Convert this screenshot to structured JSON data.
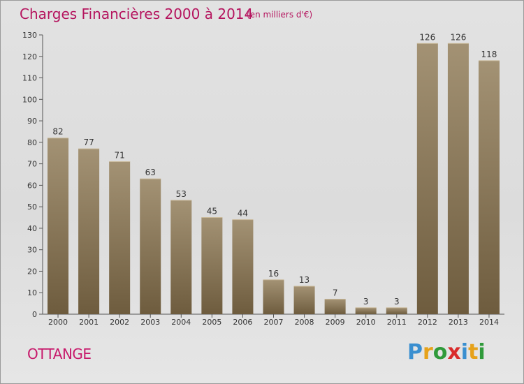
{
  "header": {
    "title": "Charges Financières 2000 à 2014",
    "subtitle": "(en milliers d'€)"
  },
  "footer": {
    "commune": "OTTANGE",
    "brand_letters": [
      "P",
      "r",
      "o",
      "x",
      "i",
      "t",
      "i"
    ],
    "brand_colors": [
      "#3a8fd0",
      "#e6a21a",
      "#2f9a3a",
      "#d92b2b",
      "#3a8fd0",
      "#e6a21a",
      "#2f9a3a"
    ]
  },
  "colors": {
    "bar_top": "#a39274",
    "bar_bottom": "#6e5c3e",
    "title": "#b5145e"
  },
  "chart_data": {
    "type": "bar",
    "categories": [
      "2000",
      "2001",
      "2002",
      "2003",
      "2004",
      "2005",
      "2006",
      "2007",
      "2008",
      "2009",
      "2010",
      "2011",
      "2012",
      "2013",
      "2014"
    ],
    "values": [
      82,
      77,
      71,
      63,
      53,
      45,
      44,
      16,
      13,
      7,
      3,
      3,
      126,
      126,
      118
    ],
    "ylim": [
      0,
      130
    ],
    "yticks": [
      0,
      10,
      20,
      30,
      40,
      50,
      60,
      70,
      80,
      90,
      100,
      110,
      120,
      130
    ],
    "grid": false,
    "data_labels": true
  }
}
